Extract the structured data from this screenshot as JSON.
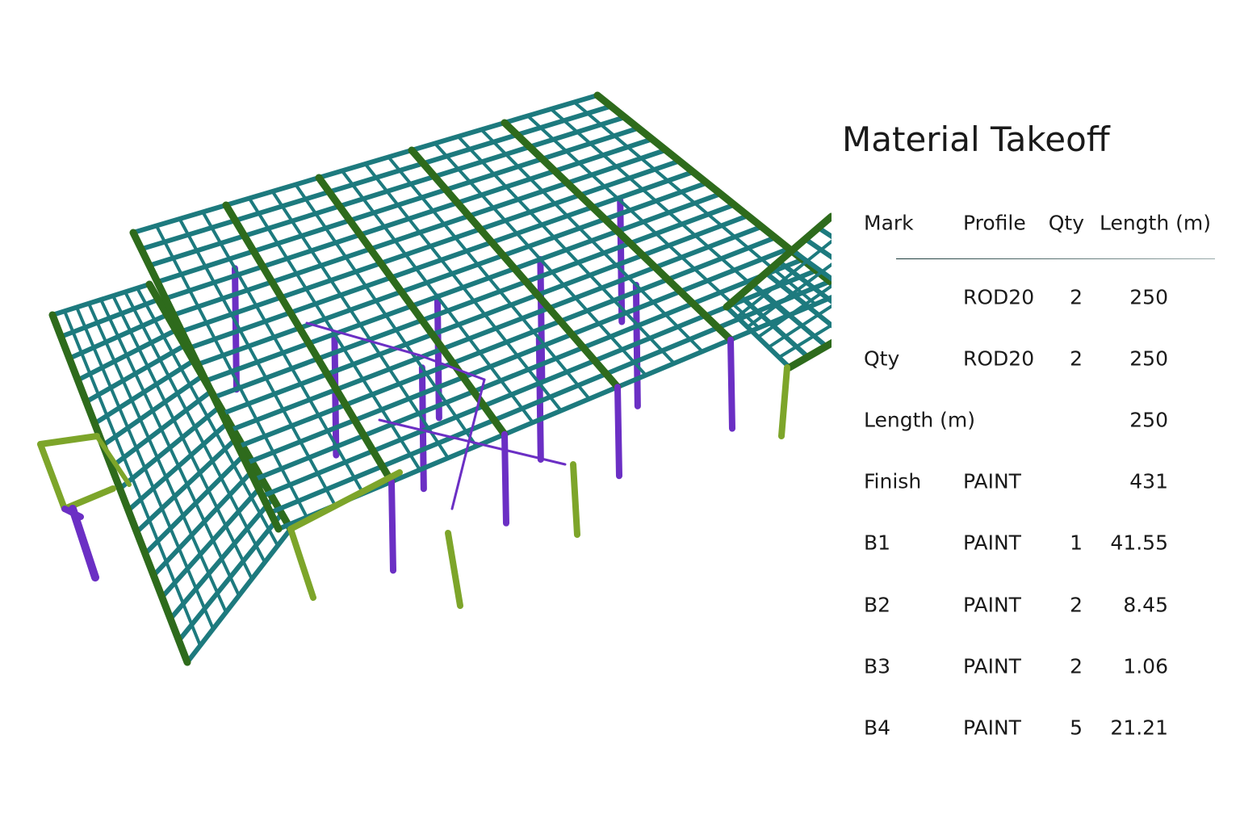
{
  "header": {
    "title": "Material Takeoff"
  },
  "table": {
    "columns": [
      "Mark",
      "Profile",
      "Qty",
      "Length (m)"
    ],
    "rows": [
      [
        null,
        "ROD20",
        "2",
        "250"
      ],
      [
        "Qty",
        "ROD20",
        "2",
        "250"
      ],
      [
        "Length (m)",
        null,
        null,
        "250"
      ],
      [
        "Finish",
        "PAINT",
        null,
        "431"
      ],
      [
        "B1",
        "PAINT",
        "1",
        "41.55"
      ],
      [
        "B2",
        "PAINT",
        "2",
        "8.45"
      ],
      [
        "B3",
        "PAINT",
        "2",
        "1.06"
      ],
      [
        "B4",
        "PAINT",
        "5",
        "21.21"
      ]
    ]
  }
}
